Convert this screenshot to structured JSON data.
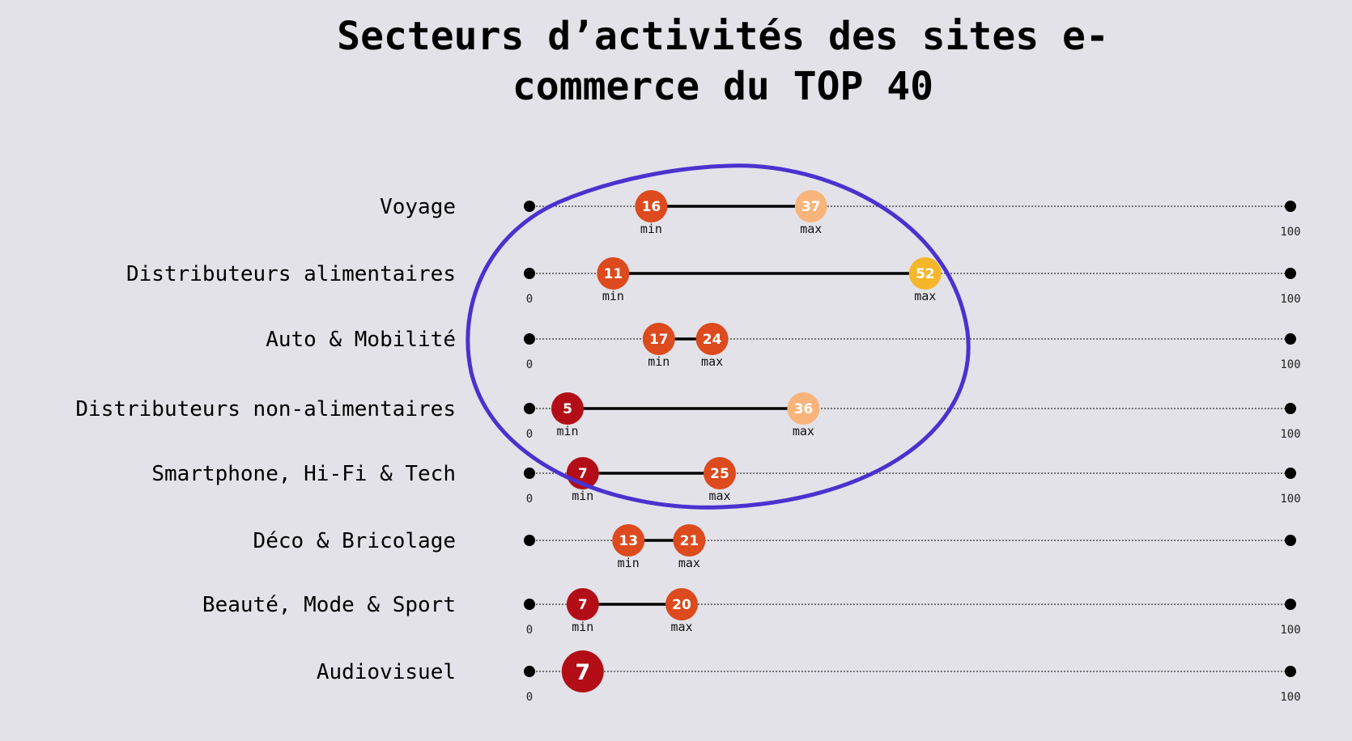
{
  "title_line_1": "Secteurs d’activités des sites e-",
  "title_line_2": "commerce du TOP 40",
  "chart_data": {
    "type": "dumbbell",
    "title": "Secteurs d’activités des sites e-commerce du TOP 40",
    "xlim": [
      0,
      100
    ],
    "axis_start_label": "0",
    "axis_end_label": "100",
    "min_label": "min",
    "max_label": "max",
    "grid": false,
    "rows": [
      {
        "category": "Voyage",
        "min": 16,
        "max": 37,
        "show_start_label": false,
        "show_end_label": true
      },
      {
        "category": "Distributeurs alimentaires",
        "min": 11,
        "max": 52,
        "show_start_label": true,
        "show_end_label": true
      },
      {
        "category": "Auto & Mobilité",
        "min": 17,
        "max": 24,
        "show_start_label": true,
        "show_end_label": true
      },
      {
        "category": "Distributeurs non-alimentaires",
        "min": 5,
        "max": 36,
        "show_start_label": true,
        "show_end_label": true
      },
      {
        "category": "Smartphone, Hi-Fi & Tech",
        "min": 7,
        "max": 25,
        "show_start_label": true,
        "show_end_label": true
      },
      {
        "category": "Déco & Bricolage",
        "min": 13,
        "max": 21,
        "show_start_label": false,
        "show_end_label": false
      },
      {
        "category": "Beauté, Mode & Sport",
        "min": 7,
        "max": 20,
        "show_start_label": true,
        "show_end_label": true
      },
      {
        "category": "Audiovisuel",
        "value": 7,
        "show_start_label": true,
        "show_end_label": true
      }
    ],
    "annotation": {
      "shape": "hand-drawn ellipse",
      "color": "#4a32cf",
      "encloses": [
        "Voyage",
        "Distributeurs alimentaires",
        "Auto & Mobilité",
        "Distributeurs non-alimentaires",
        "Smartphone, Hi-Fi & Tech"
      ]
    },
    "colors": {
      "background": "#e3e2e9",
      "dot_dark": "#b30e17",
      "dot_orange": "#dc4a1d",
      "dot_light": "#f9b47b",
      "dot_yellow": "#f6b62a",
      "connector": "#000000",
      "axis": "#000000"
    }
  }
}
